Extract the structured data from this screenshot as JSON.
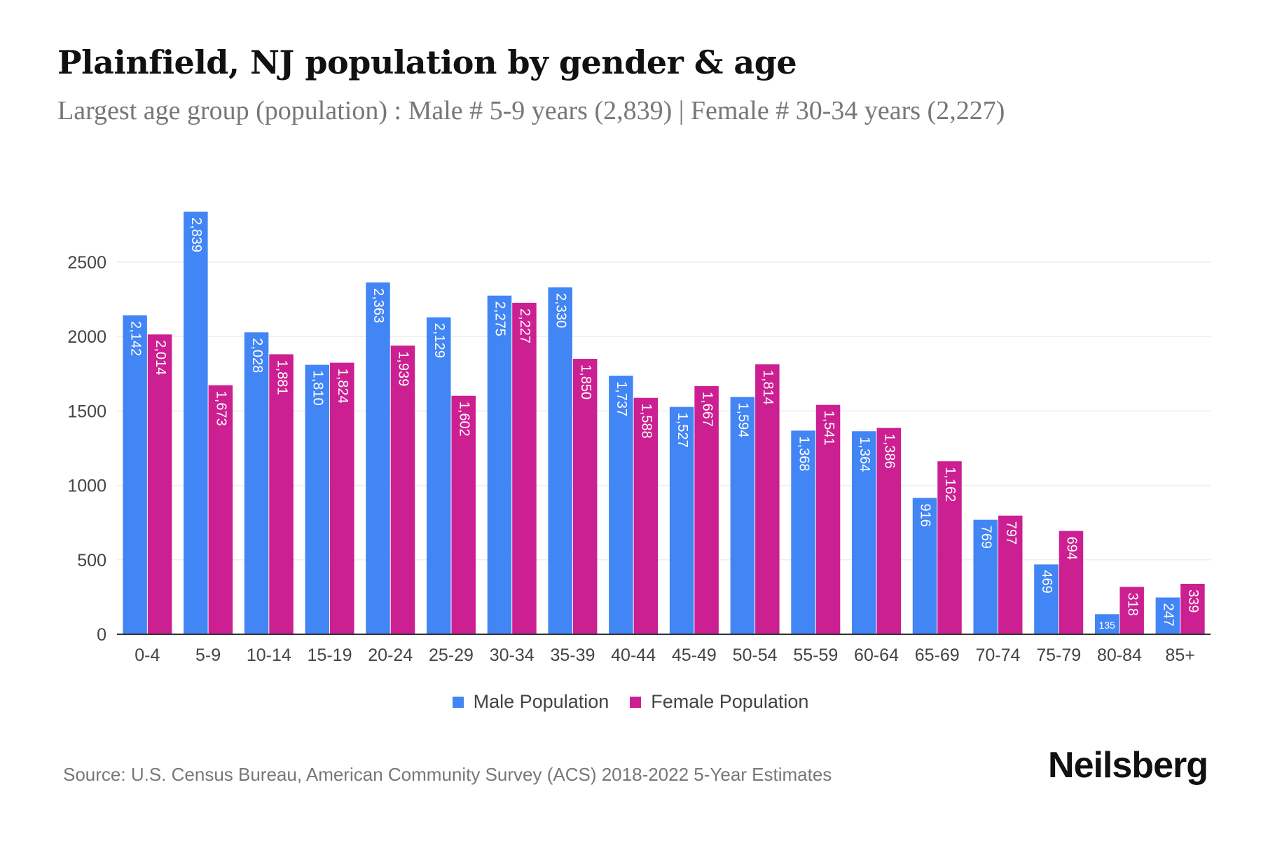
{
  "title": "Plainfield, NJ population by gender & age",
  "subtitle": "Largest age group (population) : Male # 5-9 years (2,839) | Female # 30-34 years (2,227)",
  "source": "Source: U.S. Census Bureau, American Community Survey (ACS) 2018-2022 5-Year Estimates",
  "logo": "Neilsberg",
  "chart_data": {
    "type": "bar",
    "title": "",
    "xlabel": "",
    "ylabel": "",
    "ylim": [
      0,
      2839
    ],
    "yticks": [
      0,
      500,
      1000,
      1500,
      2000,
      2500
    ],
    "grid": true,
    "legend_position": "bottom",
    "categories": [
      "0-4",
      "5-9",
      "10-14",
      "15-19",
      "20-24",
      "25-29",
      "30-34",
      "35-39",
      "40-44",
      "45-49",
      "50-54",
      "55-59",
      "60-64",
      "65-69",
      "70-74",
      "75-79",
      "80-84",
      "85+"
    ],
    "series": [
      {
        "name": "Male Population",
        "color": "#4285f4",
        "values": [
          2142,
          2839,
          2028,
          1810,
          2363,
          2129,
          2275,
          2330,
          1737,
          1527,
          1594,
          1368,
          1364,
          916,
          769,
          469,
          135,
          247
        ],
        "labels": [
          "2,142",
          "2,839",
          "2,028",
          "1,810",
          "2,363",
          "2,129",
          "2,275",
          "2,330",
          "1,737",
          "1,527",
          "1,594",
          "1,368",
          "1,364",
          "916",
          "769",
          "469",
          "135",
          "247"
        ]
      },
      {
        "name": "Female Population",
        "color": "#cc1f91",
        "values": [
          2014,
          1673,
          1881,
          1824,
          1939,
          1602,
          2227,
          1850,
          1588,
          1667,
          1814,
          1541,
          1386,
          1162,
          797,
          694,
          318,
          339
        ],
        "labels": [
          "2,014",
          "1,673",
          "1,881",
          "1,824",
          "1,939",
          "1,602",
          "2,227",
          "1,850",
          "1,588",
          "1,667",
          "1,814",
          "1,541",
          "1,386",
          "1,162",
          "797",
          "694",
          "318",
          "339"
        ]
      }
    ]
  }
}
